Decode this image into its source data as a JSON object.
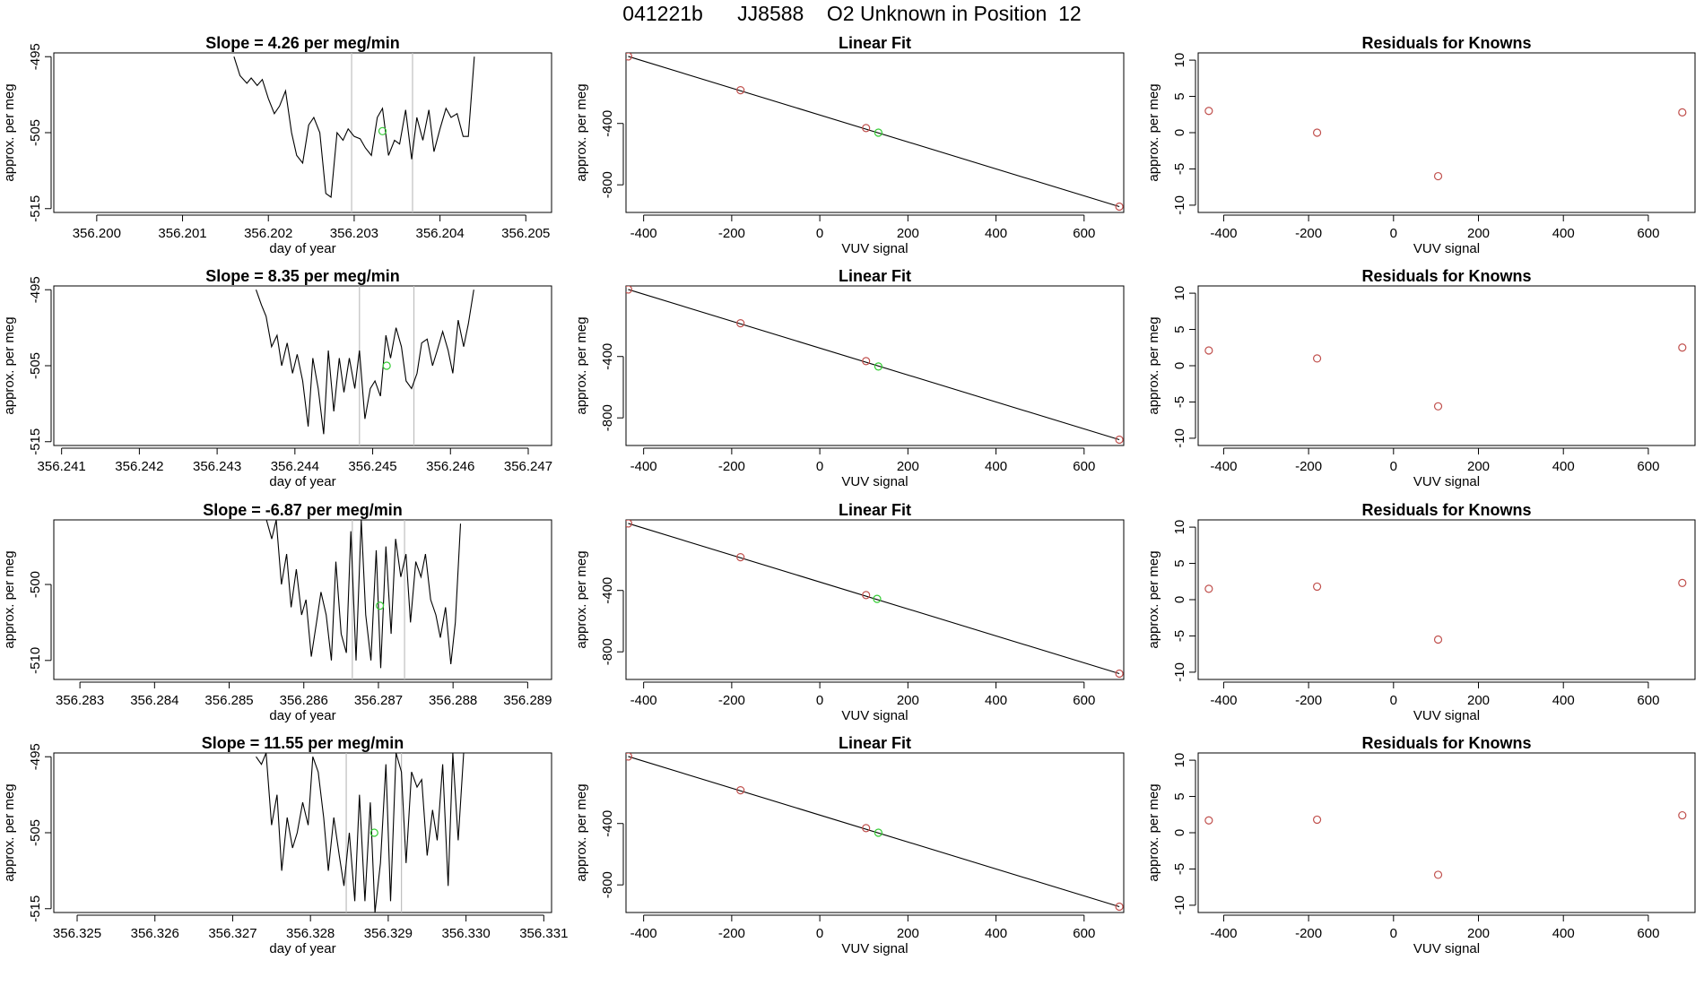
{
  "page_title": "041221b      JJ8588    O2 Unknown in Position  12",
  "colors": {
    "line": "#000000",
    "known_point": "#c0504d",
    "unknown_point": "#33cc33",
    "marker_line": "#bfbfbf"
  },
  "chart_data": [
    {
      "type": "line",
      "row": 1,
      "col": 1,
      "title": "Slope =  4.26  per meg/min",
      "xlabel": "day of year",
      "ylabel": "approx. per meg",
      "xlim": [
        356.1995,
        356.2053
      ],
      "ylim": [
        -515.5,
        -494.5
      ],
      "xticks": [
        356.2,
        356.201,
        356.202,
        356.203,
        356.204,
        356.205
      ],
      "xtick_labels": [
        "356.200",
        "356.201",
        "356.202",
        "356.203",
        "356.204",
        "356.205"
      ],
      "yticks": [
        -515,
        -505,
        -495
      ],
      "ytick_labels": [
        "-515",
        "-505",
        "-495"
      ],
      "vlines": [
        356.20297,
        356.20368
      ],
      "unknown_point": {
        "x": 356.20333,
        "y": -504.8
      },
      "x": [
        356.2016,
        356.20167,
        356.20175,
        356.2018,
        356.20187,
        356.20193,
        356.202,
        356.20207,
        356.20213,
        356.2022,
        356.20227,
        356.20233,
        356.2024,
        356.20247,
        356.20253,
        356.2026,
        356.20267,
        356.20273,
        356.2028,
        356.20287,
        356.20293,
        356.203,
        356.20307,
        356.20313,
        356.2032,
        356.20327,
        356.20333,
        356.2034,
        356.20347,
        356.20353,
        356.2036,
        356.20367,
        356.20373,
        356.2038,
        356.20387,
        356.20393,
        356.204,
        356.20407,
        356.20413,
        356.2042,
        356.20427,
        356.20433,
        356.2044
      ],
      "y": [
        -495,
        -497.5,
        -498.5,
        -497.8,
        -498.8,
        -498,
        -500.5,
        -502.5,
        -501.5,
        -499.5,
        -505,
        -508,
        -509,
        -504,
        -503,
        -505,
        -513,
        -513.5,
        -505,
        -506,
        -504.5,
        -505.5,
        -505.8,
        -507,
        -508,
        -503,
        -501.8,
        -508,
        -506,
        -506.5,
        -502,
        -508.5,
        -503,
        -506,
        -502,
        -507.5,
        -504.5,
        -501.8,
        -503,
        -502.5,
        -505.5,
        -505.5,
        -495
      ]
    },
    {
      "type": "scatter",
      "row": 1,
      "col": 2,
      "title": "Linear Fit",
      "xlabel": "VUV signal",
      "ylabel": "approx. per meg",
      "xlim": [
        -440,
        690
      ],
      "ylim": [
        -980,
        60
      ],
      "xticks": [
        -400,
        -200,
        0,
        200,
        400,
        600
      ],
      "xtick_labels": [
        "-400",
        "-200",
        "0",
        "200",
        "400",
        "600"
      ],
      "yticks": [
        -800,
        -400
      ],
      "ytick_labels": [
        "-800",
        "-400"
      ],
      "fit_line": {
        "x": [
          -435,
          680
        ],
        "y": [
          37,
          -942
        ]
      },
      "knowns": {
        "x": [
          -435,
          -180,
          105,
          680
        ],
        "y": [
          37,
          -183,
          -430,
          -942
        ]
      },
      "unknown": {
        "x": 133,
        "y": -460
      }
    },
    {
      "type": "scatter",
      "row": 1,
      "col": 3,
      "title": "Residuals for Knowns",
      "xlabel": "VUV signal",
      "ylabel": "approx. per meg",
      "xlim": [
        -460,
        710
      ],
      "ylim": [
        -11,
        11
      ],
      "xticks": [
        -400,
        -200,
        0,
        200,
        400,
        600
      ],
      "xtick_labels": [
        "-400",
        "-200",
        "0",
        "200",
        "400",
        "600"
      ],
      "yticks": [
        -10,
        -5,
        0,
        5,
        10
      ],
      "ytick_labels": [
        "-10",
        "-5",
        "0",
        "5",
        "10"
      ],
      "x": [
        -435,
        -180,
        105,
        680
      ],
      "y": [
        3,
        0,
        -6,
        2.8
      ]
    },
    {
      "type": "line",
      "row": 2,
      "col": 1,
      "title": "Slope =  8.35  per meg/min",
      "xlabel": "day of year",
      "ylabel": "approx. per meg",
      "xlim": [
        356.2409,
        356.2473
      ],
      "ylim": [
        -515.5,
        -494.5
      ],
      "xticks": [
        356.241,
        356.242,
        356.243,
        356.244,
        356.245,
        356.246,
        356.247
      ],
      "xtick_labels": [
        "356.241",
        "356.242",
        "356.243",
        "356.244",
        "356.245",
        "356.246",
        "356.247"
      ],
      "yticks": [
        -515,
        -505,
        -495
      ],
      "ytick_labels": [
        "-515",
        "-505",
        "-495"
      ],
      "vlines": [
        356.24483,
        356.24553
      ],
      "unknown_point": {
        "x": 356.24518,
        "y": -505
      },
      "x": [
        356.2435,
        356.24357,
        356.24363,
        356.2437,
        356.24377,
        356.24383,
        356.2439,
        356.24397,
        356.24403,
        356.2441,
        356.24417,
        356.24423,
        356.2443,
        356.24437,
        356.24443,
        356.2445,
        356.24457,
        356.24463,
        356.2447,
        356.24477,
        356.24483,
        356.2449,
        356.24497,
        356.24503,
        356.2451,
        356.24517,
        356.24523,
        356.2453,
        356.24537,
        356.24543,
        356.2455,
        356.24557,
        356.24563,
        356.2457,
        356.24577,
        356.24583,
        356.2459,
        356.24597,
        356.24603,
        356.2461,
        356.24617,
        356.24623,
        356.2463
      ],
      "y": [
        -495,
        -497,
        -498.5,
        -502.5,
        -501,
        -505,
        -502,
        -506,
        -503.5,
        -507,
        -513,
        -504,
        -508,
        -514,
        -503,
        -511,
        -504,
        -508.5,
        -504,
        -508,
        -503,
        -512,
        -508,
        -507,
        -509,
        -501,
        -504,
        -500,
        -502.5,
        -507,
        -508,
        -506,
        -502,
        -501.5,
        -505,
        -503,
        -500.5,
        -503,
        -506,
        -499,
        -502.5,
        -499.5,
        -495
      ]
    },
    {
      "type": "scatter",
      "row": 2,
      "col": 2,
      "title": "Linear Fit",
      "xlabel": "VUV signal",
      "ylabel": "approx. per meg",
      "xlim": [
        -440,
        690
      ],
      "ylim": [
        -980,
        60
      ],
      "xticks": [
        -400,
        -200,
        0,
        200,
        400,
        600
      ],
      "xtick_labels": [
        "-400",
        "-200",
        "0",
        "200",
        "400",
        "600"
      ],
      "yticks": [
        -800,
        -400
      ],
      "ytick_labels": [
        "-800",
        "-400"
      ],
      "fit_line": {
        "x": [
          -435,
          680
        ],
        "y": [
          37,
          -942
        ]
      },
      "knowns": {
        "x": [
          -435,
          -180,
          105,
          680
        ],
        "y": [
          37,
          -183,
          -430,
          -942
        ]
      },
      "unknown": {
        "x": 133,
        "y": -465
      }
    },
    {
      "type": "scatter",
      "row": 2,
      "col": 3,
      "title": "Residuals for Knowns",
      "xlabel": "VUV signal",
      "ylabel": "approx. per meg",
      "xlim": [
        -460,
        710
      ],
      "ylim": [
        -11,
        11
      ],
      "xticks": [
        -400,
        -200,
        0,
        200,
        400,
        600
      ],
      "xtick_labels": [
        "-400",
        "-200",
        "0",
        "200",
        "400",
        "600"
      ],
      "yticks": [
        -10,
        -5,
        0,
        5,
        10
      ],
      "ytick_labels": [
        "-10",
        "-5",
        "0",
        "5",
        "10"
      ],
      "x": [
        -435,
        -180,
        105,
        680
      ],
      "y": [
        2.1,
        1,
        -5.6,
        2.5
      ]
    },
    {
      "type": "line",
      "row": 3,
      "col": 1,
      "title": "Slope =  -6.87  per meg/min",
      "xlabel": "day of year",
      "ylabel": "approx. per meg",
      "xlim": [
        356.28265,
        356.28932
      ],
      "ylim": [
        -512.5,
        -491.5
      ],
      "xticks": [
        356.283,
        356.284,
        356.285,
        356.286,
        356.287,
        356.288,
        356.289
      ],
      "xtick_labels": [
        "356.283",
        "356.284",
        "356.285",
        "356.286",
        "356.287",
        "356.288",
        "356.289"
      ],
      "yticks": [
        -510,
        -500
      ],
      "ytick_labels": [
        "-510",
        "-500"
      ],
      "vlines": [
        356.28665,
        356.28735
      ],
      "unknown_point": {
        "x": 356.28702,
        "y": -502.8
      },
      "x": [
        356.2855,
        356.28557,
        356.28563,
        356.2857,
        356.28577,
        356.28583,
        356.2859,
        356.28597,
        356.28603,
        356.2861,
        356.28617,
        356.28623,
        356.2863,
        356.28637,
        356.28643,
        356.2865,
        356.28657,
        356.28663,
        356.2867,
        356.28677,
        356.28683,
        356.2869,
        356.28697,
        356.28703,
        356.2871,
        356.28717,
        356.28723,
        356.2873,
        356.28737,
        356.28743,
        356.2875,
        356.28757,
        356.28763,
        356.2877,
        356.28777,
        356.28783,
        356.2879,
        356.28797,
        356.28803,
        356.2881
      ],
      "y": [
        -491.5,
        -494,
        -491.5,
        -500,
        -496,
        -503,
        -498,
        -504,
        -502,
        -509.5,
        -505,
        -501,
        -504,
        -510,
        -497,
        -506.5,
        -509,
        -493,
        -510,
        -491.5,
        -504,
        -510,
        -495.5,
        -511,
        -495,
        -506.5,
        -494,
        -499,
        -496,
        -505,
        -497,
        -499,
        -496,
        -502,
        -504,
        -507,
        -503,
        -510.5,
        -505,
        -492
      ]
    },
    {
      "type": "scatter",
      "row": 3,
      "col": 2,
      "title": "Linear Fit",
      "xlabel": "VUV signal",
      "ylabel": "approx. per meg",
      "xlim": [
        -440,
        690
      ],
      "ylim": [
        -980,
        60
      ],
      "xticks": [
        -400,
        -200,
        0,
        200,
        400,
        600
      ],
      "xtick_labels": [
        "-400",
        "-200",
        "0",
        "200",
        "400",
        "600"
      ],
      "yticks": [
        -800,
        -400
      ],
      "ytick_labels": [
        "-800",
        "-400"
      ],
      "fit_line": {
        "x": [
          -435,
          680
        ],
        "y": [
          37,
          -942
        ]
      },
      "knowns": {
        "x": [
          -435,
          -180,
          105,
          680
        ],
        "y": [
          37,
          -183,
          -430,
          -942
        ]
      },
      "unknown": {
        "x": 130,
        "y": -455
      }
    },
    {
      "type": "scatter",
      "row": 3,
      "col": 3,
      "title": "Residuals for Knowns",
      "xlabel": "VUV signal",
      "ylabel": "approx. per meg",
      "xlim": [
        -460,
        710
      ],
      "ylim": [
        -11,
        11
      ],
      "xticks": [
        -400,
        -200,
        0,
        200,
        400,
        600
      ],
      "xtick_labels": [
        "-400",
        "-200",
        "0",
        "200",
        "400",
        "600"
      ],
      "yticks": [
        -10,
        -5,
        0,
        5,
        10
      ],
      "ytick_labels": [
        "-10",
        "-5",
        "0",
        "5",
        "10"
      ],
      "x": [
        -435,
        -180,
        105,
        680
      ],
      "y": [
        1.5,
        1.8,
        -5.5,
        2.3
      ]
    },
    {
      "type": "line",
      "row": 4,
      "col": 1,
      "title": "Slope =  11.55  per meg/min",
      "xlabel": "day of year",
      "ylabel": "approx. per meg",
      "xlim": [
        356.3247,
        356.3311
      ],
      "ylim": [
        -515.5,
        -494.5
      ],
      "xticks": [
        356.325,
        356.326,
        356.327,
        356.328,
        356.329,
        356.33,
        356.331
      ],
      "xtick_labels": [
        "356.325",
        "356.326",
        "356.327",
        "356.328",
        "356.329",
        "356.330",
        "356.331"
      ],
      "yticks": [
        -515,
        -505,
        -495
      ],
      "ytick_labels": [
        "-515",
        "-505",
        "-495"
      ],
      "vlines": [
        356.32846,
        356.32917
      ],
      "unknown_point": {
        "x": 356.32882,
        "y": -505
      },
      "x": [
        356.3273,
        356.32737,
        356.32743,
        356.3275,
        356.32757,
        356.32763,
        356.3277,
        356.32777,
        356.32783,
        356.3279,
        356.32797,
        356.32803,
        356.3281,
        356.32817,
        356.32823,
        356.3283,
        356.32837,
        356.32843,
        356.3285,
        356.32857,
        356.32863,
        356.3287,
        356.32877,
        356.32883,
        356.3289,
        356.32897,
        356.32903,
        356.3291,
        356.32917,
        356.32923,
        356.3293,
        356.32937,
        356.32943,
        356.3295,
        356.32957,
        356.32963,
        356.3297,
        356.32977,
        356.32983,
        356.3299,
        356.32997,
        356.33003
      ],
      "y": [
        -495,
        -496,
        -494.5,
        -504,
        -500,
        -510,
        -503,
        -507,
        -505,
        -501,
        -504,
        -495,
        -497,
        -503,
        -510,
        -503,
        -508,
        -512,
        -505,
        -514,
        -500,
        -514,
        -501,
        -515.5,
        -509,
        -496,
        -514,
        -494.5,
        -497,
        -509,
        -497,
        -499,
        -498,
        -508,
        -502,
        -506,
        -496,
        -512,
        -494.5,
        -506,
        -494.5,
        -494.5
      ]
    },
    {
      "type": "scatter",
      "row": 4,
      "col": 2,
      "title": "Linear Fit",
      "xlabel": "VUV signal",
      "ylabel": "approx. per meg",
      "xlim": [
        -440,
        690
      ],
      "ylim": [
        -980,
        60
      ],
      "xticks": [
        -400,
        -200,
        0,
        200,
        400,
        600
      ],
      "xtick_labels": [
        "-400",
        "-200",
        "0",
        "200",
        "400",
        "600"
      ],
      "yticks": [
        -800,
        -400
      ],
      "ytick_labels": [
        "-800",
        "-400"
      ],
      "fit_line": {
        "x": [
          -435,
          680
        ],
        "y": [
          37,
          -942
        ]
      },
      "knowns": {
        "x": [
          -435,
          -180,
          105,
          680
        ],
        "y": [
          37,
          -183,
          -430,
          -942
        ]
      },
      "unknown": {
        "x": 133,
        "y": -460
      }
    },
    {
      "type": "scatter",
      "row": 4,
      "col": 3,
      "title": "Residuals for Knowns",
      "xlabel": "VUV signal",
      "ylabel": "approx. per meg",
      "xlim": [
        -460,
        710
      ],
      "ylim": [
        -11,
        11
      ],
      "xticks": [
        -400,
        -200,
        0,
        200,
        400,
        600
      ],
      "xtick_labels": [
        "-400",
        "-200",
        "0",
        "200",
        "400",
        "600"
      ],
      "yticks": [
        -10,
        -5,
        0,
        5,
        10
      ],
      "ytick_labels": [
        "-10",
        "-5",
        "0",
        "5",
        "10"
      ],
      "x": [
        -435,
        -180,
        105,
        680
      ],
      "y": [
        1.7,
        1.8,
        -5.8,
        2.4
      ]
    }
  ]
}
